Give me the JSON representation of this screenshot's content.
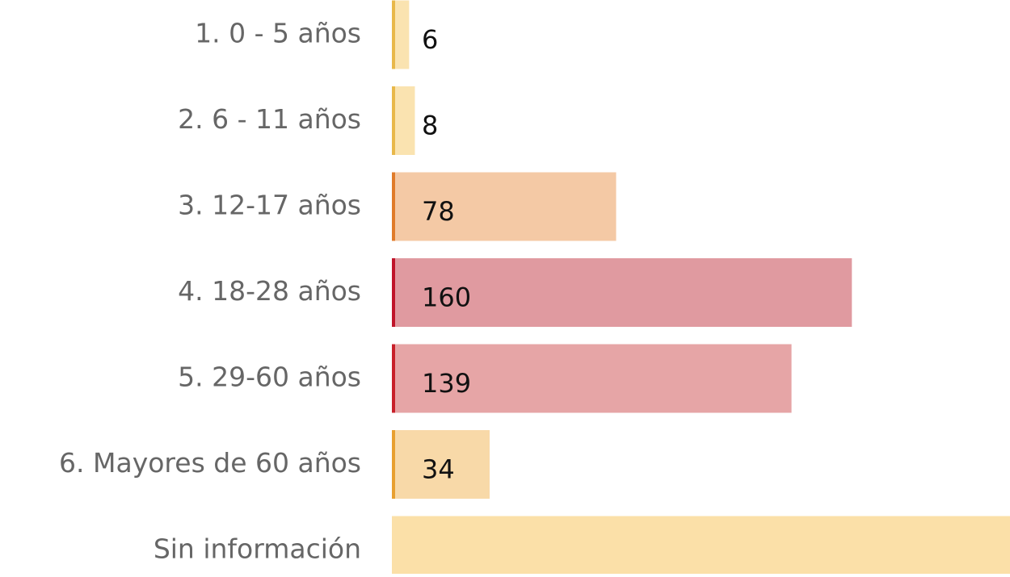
{
  "chart_data": {
    "type": "hbar",
    "categories": [
      "1. 0 - 5 años",
      "2. 6 - 11 años",
      "3. 12-17 años",
      "4. 18-28 años",
      "5. 29-60 años",
      "6. Mayores de 60 años",
      "Sin información"
    ],
    "values": [
      6,
      8,
      78,
      160,
      139,
      34,
      215
    ],
    "value_labels": [
      "6",
      "8",
      "78",
      "160",
      "139",
      "34",
      null
    ],
    "colors": [
      "#fae3b0",
      "#fae3b0",
      "#f4c9a5",
      "#e09aa0",
      "#e6a5a6",
      "#f8d9a8",
      "#fbe0a8"
    ],
    "accent_colors": [
      "#e8b84a",
      "#e8b84a",
      "#e07b2a",
      "#c0142a",
      "#c8202a",
      "#e8a030",
      "#fbe0a8"
    ],
    "xlim": [
      0,
      215
    ]
  }
}
